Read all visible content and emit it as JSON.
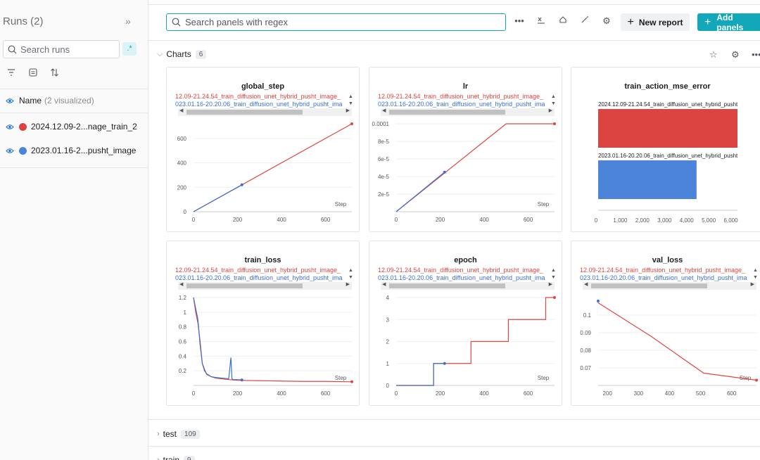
{
  "sidebar": {
    "title": "Runs (2)",
    "collapse_icon": "»",
    "search_placeholder": "Search runs",
    "regex_label": ".*",
    "name_header": "Name",
    "name_sub": "(2 visualized)",
    "runs": [
      {
        "label": "2024.12.09-2...nage_train_2",
        "color": "#dc4441"
      },
      {
        "label": "2023.01.16-2...pusht_image",
        "color": "#4c84d9"
      }
    ]
  },
  "toolbar": {
    "search_placeholder": "Search panels with regex",
    "new_report_label": "New report",
    "add_panels_label": "Add panels"
  },
  "sections": [
    {
      "name": "Charts",
      "count": "6"
    },
    {
      "name": "test",
      "count": "109"
    },
    {
      "name": "train",
      "count": "9"
    }
  ],
  "chart_data": [
    {
      "type": "line",
      "title": "global_step",
      "legend": [
        "12.09-21.24.54_train_diffusion_unet_hybrid_pusht_image_",
        "023.01.16-20.20.06_train_diffusion_unet_hybrid_pusht_ima"
      ],
      "xlabel": "Step",
      "xlim": [
        0,
        720
      ],
      "ylim": [
        0,
        720
      ],
      "xticks": [
        0,
        200,
        400,
        600
      ],
      "yticks": [
        0,
        200,
        400,
        600
      ],
      "ytick_labels": [
        "0",
        "200",
        "400",
        "600"
      ],
      "series": [
        {
          "color": "#e0453f",
          "x": [
            0,
            720
          ],
          "y": [
            0,
            720
          ]
        },
        {
          "color": "#3b6fd1",
          "x": [
            0,
            220
          ],
          "y": [
            0,
            220
          ]
        }
      ]
    },
    {
      "type": "line",
      "title": "lr",
      "legend": [
        "12.09-21.24.54_train_diffusion_unet_hybrid_pusht_image_",
        "023.01.16-20.20.06_train_diffusion_unet_hybrid_pusht_ima"
      ],
      "xlabel": "Step",
      "xlim": [
        0,
        720
      ],
      "ylim": [
        0,
        0.0001
      ],
      "xticks": [
        0,
        200,
        400,
        600
      ],
      "yticks": [
        2e-05,
        4e-05,
        6e-05,
        8e-05,
        0.0001
      ],
      "ytick_labels": [
        "2e-5",
        "4e-5",
        "6e-5",
        "8e-5",
        "0.0001"
      ],
      "series": [
        {
          "color": "#e0453f",
          "x": [
            0,
            500,
            720
          ],
          "y": [
            0,
            0.0001,
            0.0001
          ]
        },
        {
          "color": "#3b6fd1",
          "x": [
            0,
            220
          ],
          "y": [
            0,
            4.5e-05
          ]
        }
      ]
    },
    {
      "type": "bar",
      "title": "train_action_mse_error",
      "orientation": "horizontal",
      "categories": [
        "2024.12.09-21.24.54_train_diffusion_unet_hybrid_pusht",
        "2023.01.16-20.20.06_train_diffusion_unet_hybrid_pusht"
      ],
      "values": [
        6300,
        4450
      ],
      "colors": [
        "#dc4441",
        "#4c84d9"
      ],
      "xlim": [
        0,
        6300
      ],
      "xticks": [
        0,
        1000,
        2000,
        3000,
        4000,
        5000,
        6000
      ],
      "xtick_labels": [
        "0",
        "1,000",
        "2,000",
        "3,000",
        "4,000",
        "5,000",
        "6,000"
      ]
    },
    {
      "type": "line",
      "title": "train_loss",
      "legend": [
        "12.09-21.24.54_train_diffusion_unet_hybrid_pusht_image_",
        "023.01.16-20.20.06_train_diffusion_unet_hybrid_pusht_ima"
      ],
      "xlabel": "Step",
      "xlim": [
        0,
        720
      ],
      "ylim": [
        0,
        1.2
      ],
      "xticks": [
        0,
        200,
        400,
        600
      ],
      "yticks": [
        0.2,
        0.4,
        0.6,
        0.8,
        1,
        1.2
      ],
      "ytick_labels": [
        "0.2",
        "0.4",
        "0.6",
        "0.8",
        "1",
        "1.2"
      ],
      "series": [
        {
          "color": "#e0453f",
          "x": [
            0,
            10,
            20,
            30,
            40,
            50,
            60,
            80,
            100,
            130,
            160,
            200,
            300,
            400,
            500,
            600,
            720
          ],
          "y": [
            1.2,
            1.0,
            0.85,
            0.6,
            0.3,
            0.22,
            0.15,
            0.12,
            0.1,
            0.09,
            0.08,
            0.07,
            0.065,
            0.06,
            0.055,
            0.055,
            0.05
          ]
        },
        {
          "color": "#3b6fd1",
          "x": [
            0,
            10,
            20,
            30,
            40,
            50,
            60,
            80,
            100,
            130,
            160,
            170,
            175,
            180,
            200,
            220
          ],
          "y": [
            1.2,
            1.05,
            0.9,
            0.55,
            0.3,
            0.2,
            0.16,
            0.12,
            0.11,
            0.1,
            0.09,
            0.38,
            0.09,
            0.08,
            0.08,
            0.075
          ]
        }
      ]
    },
    {
      "type": "line",
      "title": "epoch",
      "legend": [
        "12.09-21.24.54_train_diffusion_unet_hybrid_pusht_image_",
        "023.01.16-20.20.06_train_diffusion_unet_hybrid_pusht_ima"
      ],
      "xlabel": "Step",
      "xlim": [
        0,
        720
      ],
      "ylim": [
        0,
        4
      ],
      "xticks": [
        0,
        200,
        400,
        600
      ],
      "yticks": [
        0,
        1,
        2,
        3,
        4
      ],
      "ytick_labels": [
        "0",
        "1",
        "2",
        "3",
        "4"
      ],
      "series": [
        {
          "color": "#e0453f",
          "x": [
            0,
            170,
            170,
            340,
            340,
            510,
            510,
            680,
            680,
            720
          ],
          "y": [
            0,
            0,
            1,
            1,
            2,
            2,
            3,
            3,
            4,
            4
          ]
        },
        {
          "color": "#3b6fd1",
          "x": [
            0,
            170,
            170,
            220
          ],
          "y": [
            0,
            0,
            1,
            1
          ]
        }
      ]
    },
    {
      "type": "line",
      "title": "val_loss",
      "legend": [
        "12.09-21.24.54_train_diffusion_unet_hybrid_pusht_image_",
        "023.01.16-20.20.06_train_diffusion_unet_hybrid_pusht_ima"
      ],
      "xlabel": "Step",
      "xlim": [
        170,
        680
      ],
      "ylim": [
        0.06,
        0.11
      ],
      "xticks": [
        200,
        300,
        400,
        500,
        600
      ],
      "yticks": [
        0.07,
        0.08,
        0.09,
        0.1
      ],
      "ytick_labels": [
        "0.07",
        "0.08",
        "0.09",
        "0.1"
      ],
      "series": [
        {
          "color": "#e0453f",
          "x": [
            170,
            340,
            510,
            680
          ],
          "y": [
            0.107,
            0.088,
            0.067,
            0.063
          ]
        },
        {
          "color": "#3b6fd1",
          "x": [
            170
          ],
          "y": [
            0.108
          ]
        }
      ]
    }
  ]
}
